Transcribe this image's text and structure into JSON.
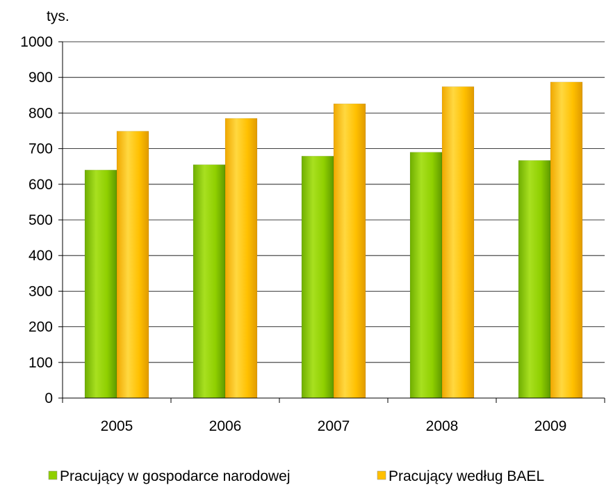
{
  "chart_data": {
    "type": "bar",
    "unit_label": "tys.",
    "categories": [
      "2005",
      "2006",
      "2007",
      "2008",
      "2009"
    ],
    "series": [
      {
        "name": "Pracujący w gospodarce narodowej",
        "values": [
          640,
          655,
          679,
          690,
          667
        ],
        "color": "#8fcf00"
      },
      {
        "name": "Pracujący według BAEL",
        "values": [
          749,
          785,
          826,
          874,
          887
        ],
        "color": "#ffc000"
      }
    ],
    "ylim": [
      0,
      1000
    ],
    "yticks": [
      0,
      100,
      200,
      300,
      400,
      500,
      600,
      700,
      800,
      900,
      1000
    ],
    "grid": true,
    "legend_position": "bottom"
  }
}
